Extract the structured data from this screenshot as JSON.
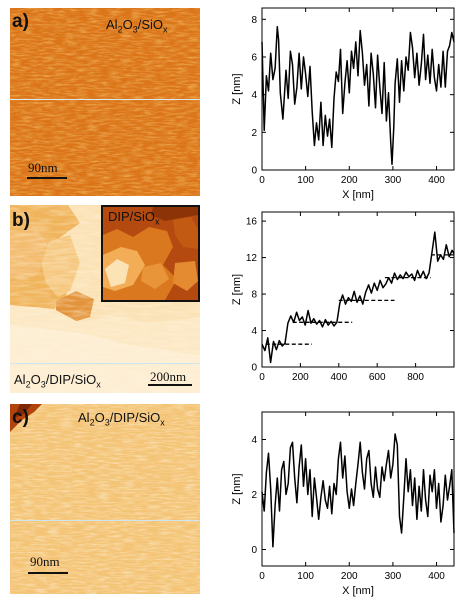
{
  "panels": [
    {
      "letter": "a)",
      "sample_label": {
        "base": "Al",
        "sub1": "2",
        "mid": "O",
        "sub2": "3",
        "tail": "/SiO",
        "sub3": "x"
      },
      "scale_bar": "90nm",
      "profile_line_color": "#cfe3ee",
      "palette": [
        "#c84a08",
        "#e98826",
        "#f8c25a"
      ],
      "chart_data": {
        "type": "line",
        "xlabel": "X [nm]",
        "ylabel": "Z [nm]",
        "xlim": [
          0,
          440
        ],
        "ylim": [
          0,
          8.6
        ],
        "xticks": [
          0,
          100,
          200,
          300,
          400
        ],
        "yticks": [
          0,
          2,
          4,
          6,
          8
        ],
        "series": [
          {
            "x": [
              0,
              5,
              10,
              15,
              20,
              25,
              30,
              35,
              38,
              42,
              48,
              55,
              60,
              65,
              70,
              75,
              80,
              85,
              90,
              95,
              100,
              105,
              110,
              115,
              120,
              125,
              130,
              135,
              140,
              145,
              150,
              155,
              160,
              165,
              170,
              175,
              180,
              185,
              190,
              195,
              200,
              205,
              210,
              215,
              220,
              225,
              230,
              235,
              240,
              245,
              250,
              255,
              260,
              265,
              270,
              275,
              280,
              285,
              290,
              295,
              298,
              302,
              305,
              310,
              315,
              320,
              325,
              330,
              335,
              340,
              345,
              350,
              355,
              360,
              365,
              370,
              375,
              380,
              385,
              390,
              395,
              400,
              405,
              410,
              415,
              420,
              425,
              430,
              435,
              440
            ],
            "y": [
              6.8,
              2.1,
              5.0,
              4.2,
              6.2,
              4.8,
              5.4,
              7.6,
              6.9,
              4.1,
              2.7,
              5.3,
              3.8,
              6.3,
              5.6,
              3.5,
              4.4,
              6.2,
              4.3,
              6.0,
              5.1,
              3.9,
              5.5,
              3.1,
              1.3,
              2.5,
              1.6,
              3.6,
              1.3,
              2.9,
              1.8,
              2.7,
              1.2,
              3.8,
              5.2,
              4.7,
              6.4,
              3.0,
              4.6,
              5.8,
              4.1,
              6.3,
              5.4,
              6.8,
              5.0,
              7.4,
              6.2,
              4.5,
              5.6,
              3.4,
              6.2,
              5.1,
              3.3,
              6.1,
              4.4,
              3.0,
              5.7,
              2.6,
              4.1,
              1.5,
              0.3,
              2.3,
              4.6,
              5.9,
              3.6,
              5.8,
              4.2,
              6.0,
              5.3,
              7.3,
              6.5,
              4.9,
              6.2,
              4.5,
              5.6,
              7.2,
              4.8,
              6.1,
              4.6,
              6.4,
              4.9,
              4.2,
              5.6,
              4.4,
              6.3,
              4.4,
              6.3,
              6.6,
              7.3,
              6.8
            ]
          }
        ]
      }
    },
    {
      "letter": "b)",
      "sample_label": {
        "base": "Al",
        "sub1": "2",
        "mid": "O",
        "sub2": "3",
        "tail": "/DIP/SiO",
        "sub3": "x"
      },
      "inset_label": {
        "base": "DIP/SiO",
        "sub": "x"
      },
      "scale_bar": "200nm",
      "profile_line_color": "#cfe3ee",
      "chart_data": {
        "type": "line",
        "xlabel": "",
        "ylabel": "Z [nm]",
        "xlim": [
          0,
          1000
        ],
        "ylim": [
          0,
          17
        ],
        "xticks": [
          0,
          200,
          400,
          600,
          800
        ],
        "yticks": [
          0,
          4,
          8,
          12,
          16
        ],
        "series": [
          {
            "x": [
              0,
              15,
              30,
              45,
              60,
              75,
              90,
              105,
              120,
              135,
              150,
              165,
              180,
              195,
              210,
              225,
              240,
              255,
              270,
              285,
              300,
              315,
              330,
              345,
              360,
              375,
              390,
              405,
              420,
              435,
              450,
              465,
              480,
              495,
              510,
              525,
              540,
              555,
              570,
              585,
              600,
              615,
              630,
              645,
              660,
              675,
              690,
              705,
              720,
              735,
              750,
              765,
              780,
              795,
              810,
              825,
              840,
              855,
              870,
              885,
              900,
              915,
              930,
              945,
              960,
              975,
              990,
              1000
            ],
            "y": [
              2.5,
              1.8,
              3.2,
              0.5,
              2.8,
              1.9,
              2.9,
              2.3,
              2.6,
              4.8,
              5.6,
              4.9,
              6.0,
              5.1,
              5.5,
              4.6,
              6.2,
              4.8,
              5.3,
              4.7,
              5.1,
              4.4,
              5.2,
              4.6,
              5.0,
              4.5,
              4.9,
              7.0,
              7.9,
              6.9,
              7.6,
              7.2,
              8.3,
              7.1,
              7.8,
              6.9,
              8.2,
              9.0,
              8.1,
              9.2,
              8.4,
              9.5,
              8.7,
              9.1,
              9.8,
              9.2,
              10.3,
              9.6,
              10.1,
              9.7,
              10.4,
              9.9,
              10.2,
              9.5,
              10.6,
              9.8,
              10.5,
              9.7,
              10.3,
              12.5,
              14.8,
              11.6,
              12.3,
              11.8,
              13.4,
              12.1,
              12.8,
              12.4
            ]
          },
          {
            "name": "terrace",
            "x": [
              20,
              260
            ],
            "y": [
              2.5,
              2.5
            ]
          },
          {
            "name": "terrace",
            "x": [
              160,
              470
            ],
            "y": [
              4.9,
              4.9
            ]
          },
          {
            "name": "terrace",
            "x": [
              400,
              690
            ],
            "y": [
              7.3,
              7.3
            ]
          },
          {
            "name": "terrace",
            "x": [
              640,
              880
            ],
            "y": [
              9.8,
              9.8
            ]
          },
          {
            "name": "terrace",
            "x": [
              880,
              1000
            ],
            "y": [
              12.3,
              12.3
            ]
          }
        ]
      }
    },
    {
      "letter": "c)",
      "sample_label": {
        "base": "Al",
        "sub1": "2",
        "mid": "O",
        "sub2": "3",
        "tail": "/DIP/SiO",
        "sub3": "x"
      },
      "scale_bar": "90nm",
      "profile_line_color": "#cfe3ee",
      "chart_data": {
        "type": "line",
        "xlabel": "X [nm]",
        "ylabel": "Z [nm]",
        "xlim": [
          0,
          440
        ],
        "ylim": [
          -0.6,
          5.0
        ],
        "xticks": [
          0,
          100,
          200,
          300,
          400
        ],
        "yticks": [
          0,
          2,
          4
        ],
        "series": [
          {
            "x": [
              0,
              5,
              10,
              15,
              20,
              25,
              30,
              35,
              40,
              45,
              50,
              55,
              60,
              65,
              70,
              75,
              80,
              85,
              90,
              95,
              100,
              105,
              110,
              115,
              120,
              125,
              130,
              135,
              140,
              145,
              150,
              155,
              160,
              165,
              170,
              175,
              180,
              185,
              190,
              195,
              200,
              205,
              210,
              215,
              220,
              225,
              230,
              235,
              240,
              245,
              250,
              255,
              260,
              265,
              270,
              275,
              280,
              285,
              290,
              295,
              300,
              305,
              310,
              315,
              320,
              325,
              330,
              335,
              340,
              345,
              350,
              355,
              360,
              365,
              370,
              375,
              380,
              385,
              390,
              395,
              400,
              405,
              410,
              415,
              420,
              425,
              430,
              435,
              440
            ],
            "y": [
              2.1,
              1.4,
              2.8,
              3.5,
              2.2,
              0.1,
              1.6,
              2.6,
              1.4,
              2.9,
              3.2,
              2.0,
              2.4,
              3.7,
              3.9,
              2.6,
              1.7,
              3.0,
              3.8,
              2.3,
              3.3,
              2.0,
              2.9,
              1.2,
              2.6,
              1.9,
              1.1,
              1.9,
              2.5,
              1.8,
              1.5,
              2.3,
              1.3,
              2.4,
              2.0,
              3.3,
              3.9,
              2.6,
              3.4,
              2.1,
              1.5,
              2.2,
              1.6,
              2.4,
              3.1,
              3.9,
              2.8,
              2.2,
              3.3,
              3.6,
              2.4,
              1.9,
              3.0,
              2.2,
              1.9,
              3.0,
              2.5,
              3.1,
              3.6,
              2.6,
              3.1,
              4.2,
              3.8,
              1.2,
              0.6,
              1.9,
              3.3,
              2.1,
              2.9,
              1.6,
              2.6,
              1.1,
              2.3,
              1.4,
              2.9,
              1.8,
              1.2,
              2.7,
              2.1,
              2.9,
              1.5,
              2.4,
              1.0,
              1.6,
              2.7,
              1.8,
              2.3,
              2.9,
              0.6
            ]
          }
        ]
      }
    }
  ]
}
